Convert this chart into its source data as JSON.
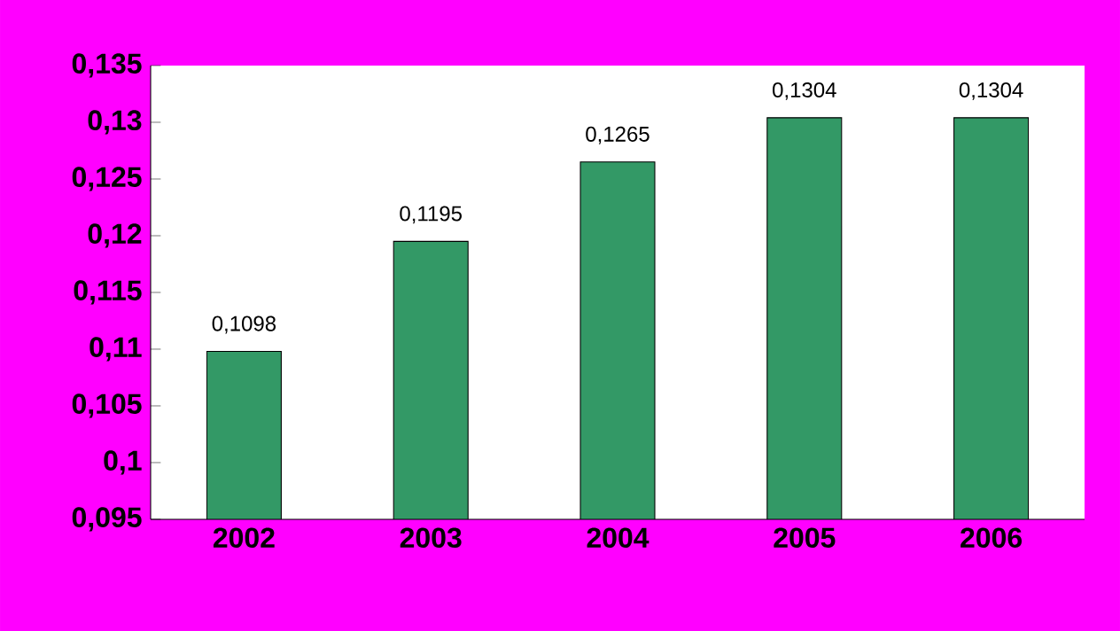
{
  "chart_data": {
    "type": "bar",
    "categories": [
      "2002",
      "2003",
      "2004",
      "2005",
      "2006"
    ],
    "values": [
      0.1098,
      0.1195,
      0.1265,
      0.1304,
      0.1304
    ],
    "value_labels": [
      "0,1098",
      "0,1195",
      "0,1265",
      "0,1304",
      "0,1304"
    ],
    "color": "#339966",
    "ylim": [
      0.095,
      0.135
    ],
    "yticks": [
      {
        "value": 0.095,
        "label": "0,095"
      },
      {
        "value": 0.1,
        "label": "0,1"
      },
      {
        "value": 0.105,
        "label": "0,105"
      },
      {
        "value": 0.11,
        "label": "0,11"
      },
      {
        "value": 0.115,
        "label": "0,115"
      },
      {
        "value": 0.12,
        "label": "0,12"
      },
      {
        "value": 0.125,
        "label": "0,125"
      },
      {
        "value": 0.13,
        "label": "0,13"
      },
      {
        "value": 0.135,
        "label": "0,135"
      }
    ]
  }
}
